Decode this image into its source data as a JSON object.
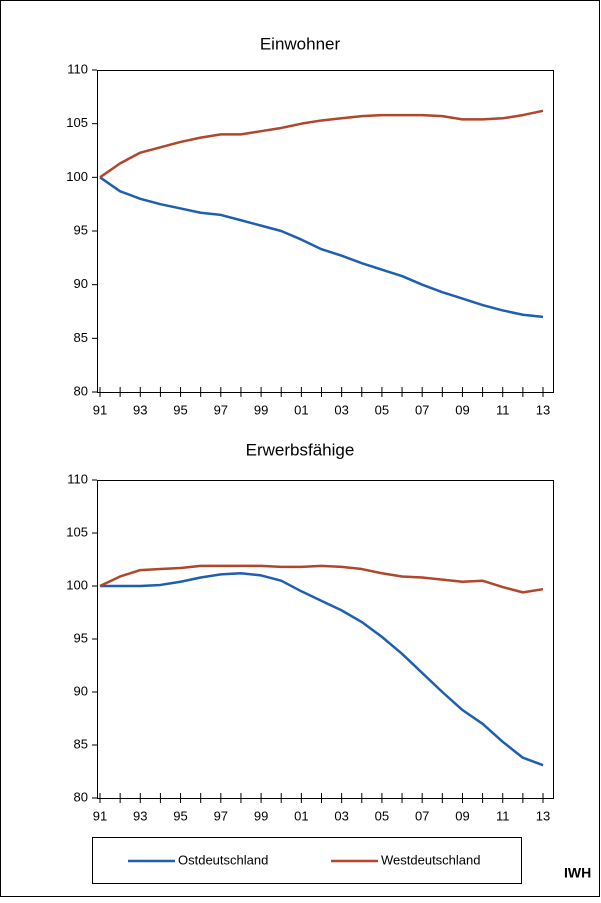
{
  "chart_data": [
    {
      "type": "line",
      "title": "Einwohner",
      "categories": [
        "91",
        null,
        "93",
        null,
        "95",
        null,
        "97",
        null,
        "99",
        null,
        "01",
        null,
        "03",
        null,
        "05",
        null,
        "07",
        null,
        "09",
        null,
        "11",
        null,
        "13"
      ],
      "ylim": [
        80,
        110
      ],
      "yticks": [
        80,
        85,
        90,
        95,
        100,
        105,
        110
      ],
      "series": [
        {
          "name": "Ostdeutschland",
          "color": "#1f5fb0",
          "values": [
            100,
            98.7,
            98.0,
            97.5,
            97.1,
            96.7,
            96.5,
            96.0,
            95.5,
            95.0,
            94.2,
            93.3,
            92.7,
            92.0,
            91.4,
            90.8,
            90.0,
            89.3,
            88.7,
            88.1,
            87.6,
            87.2,
            87.0
          ]
        },
        {
          "name": "Westdeutschland",
          "color": "#b0462b",
          "values": [
            100,
            101.3,
            102.3,
            102.8,
            103.3,
            103.7,
            104.0,
            104.0,
            104.3,
            104.6,
            105.0,
            105.3,
            105.5,
            105.7,
            105.8,
            105.8,
            105.8,
            105.7,
            105.4,
            105.4,
            105.5,
            105.8,
            106.2
          ]
        }
      ]
    },
    {
      "type": "line",
      "title": "Erwerbsfähige",
      "categories": [
        "91",
        null,
        "93",
        null,
        "95",
        null,
        "97",
        null,
        "99",
        null,
        "01",
        null,
        "03",
        null,
        "05",
        null,
        "07",
        null,
        "09",
        null,
        "11",
        null,
        "13"
      ],
      "ylim": [
        80,
        110
      ],
      "yticks": [
        80,
        85,
        90,
        95,
        100,
        105,
        110
      ],
      "series": [
        {
          "name": "Ostdeutschland",
          "color": "#1f5fb0",
          "values": [
            100,
            100,
            100,
            100.1,
            100.4,
            100.8,
            101.1,
            101.2,
            101.0,
            100.5,
            99.5,
            98.6,
            97.7,
            96.6,
            95.2,
            93.6,
            91.8,
            90.0,
            88.3,
            87.0,
            85.3,
            83.8,
            83.1
          ]
        },
        {
          "name": "Westdeutschland",
          "color": "#b0462b",
          "values": [
            100,
            100.9,
            101.5,
            101.6,
            101.7,
            101.9,
            101.9,
            101.9,
            101.9,
            101.8,
            101.8,
            101.9,
            101.8,
            101.6,
            101.2,
            100.9,
            100.8,
            100.6,
            100.4,
            100.5,
            99.9,
            99.4,
            99.7
          ]
        }
      ]
    }
  ],
  "source": "IWH"
}
